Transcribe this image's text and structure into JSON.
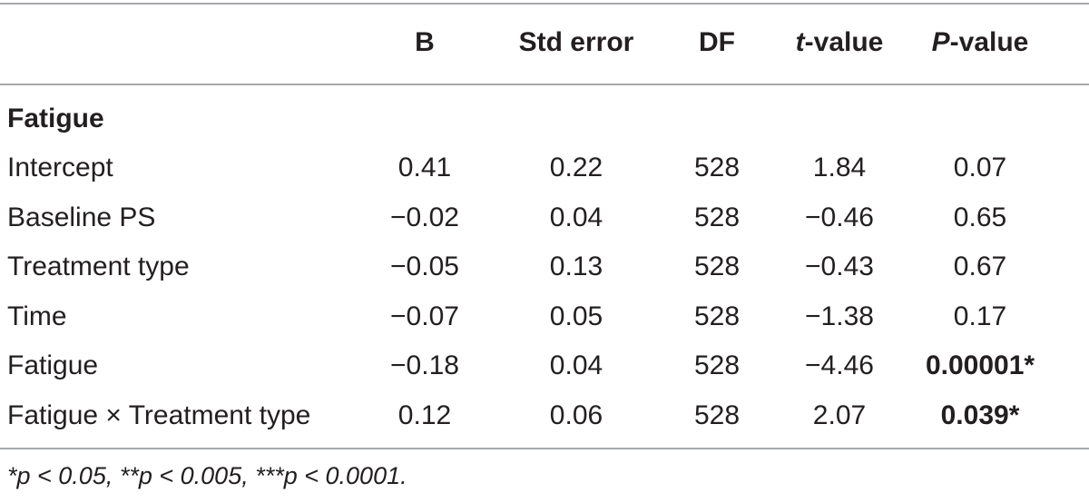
{
  "table": {
    "headers": {
      "b": "B",
      "std_error": "Std error",
      "df": "DF",
      "t_value_italic": "t",
      "t_value_rest": "-value",
      "p_value_italic": "P",
      "p_value_rest": "-value"
    },
    "section_title": "Fatigue",
    "rows": [
      {
        "label": "Intercept",
        "b": "0.41",
        "se": "0.22",
        "df": "528",
        "t": "1.84",
        "p": "0.07",
        "p_bold": false
      },
      {
        "label": "Baseline PS",
        "b": "−0.02",
        "se": "0.04",
        "df": "528",
        "t": "−0.46",
        "p": "0.65",
        "p_bold": false
      },
      {
        "label": "Treatment type",
        "b": "−0.05",
        "se": "0.13",
        "df": "528",
        "t": "−0.43",
        "p": "0.67",
        "p_bold": false
      },
      {
        "label": "Time",
        "b": "−0.07",
        "se": "0.05",
        "df": "528",
        "t": "−1.38",
        "p": "0.17",
        "p_bold": false
      },
      {
        "label": "Fatigue",
        "b": "−0.18",
        "se": "0.04",
        "df": "528",
        "t": "−4.46",
        "p": "0.00001*",
        "p_bold": true
      },
      {
        "label": "Fatigue × Treatment type",
        "b": "0.12",
        "se": "0.06",
        "df": "528",
        "t": "2.07",
        "p": "0.039*",
        "p_bold": true
      }
    ],
    "footnote": "*p < 0.05, **p < 0.005, ***p < 0.0001."
  }
}
